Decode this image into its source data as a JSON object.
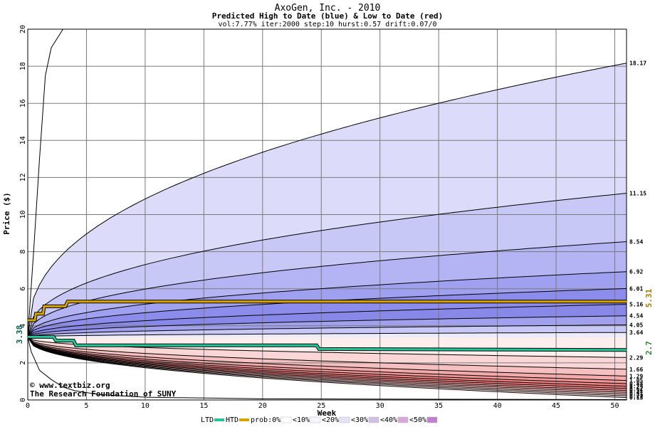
{
  "colors": {
    "bg": "#ffffff",
    "grid": "#7a7a7a",
    "htd": "#d9a400",
    "ltd": "#22c89a",
    "start_label": "#006644",
    "last_htd_label": "#b07c00",
    "last_ltd_label": "#2a8a2a",
    "footer": "#000080"
  },
  "chart_data": {
    "type": "area",
    "title": "AxoGen, Inc. - 2010",
    "subtitle": "Predicted High to Date (blue) &  Low to Date (red)",
    "params": "vol:7.77% iter:2000 step:10 hurst:0.57 drift:0.07/0",
    "xlabel": "Week",
    "ylabel": "Price ($)",
    "xlim": [
      0,
      51
    ],
    "ylim": [
      0,
      20
    ],
    "x_ticks": [
      0,
      5,
      10,
      15,
      20,
      25,
      30,
      35,
      40,
      45,
      50
    ],
    "y_ticks": [
      0,
      2,
      4,
      6,
      8,
      10,
      12,
      14,
      16,
      18,
      20
    ],
    "grid": true,
    "start_price": "3.38",
    "last_htd": "5.31",
    "last_ltd": "2.7",
    "htd_line": [
      [
        0,
        4.3
      ],
      [
        0.6,
        4.3
      ],
      [
        0.7,
        4.65
      ],
      [
        1.3,
        4.65
      ],
      [
        1.4,
        5.05
      ],
      [
        3.2,
        5.05
      ],
      [
        3.4,
        5.31
      ],
      [
        51,
        5.31
      ]
    ],
    "ltd_line": [
      [
        0,
        3.4
      ],
      [
        2.2,
        3.4
      ],
      [
        2.4,
        3.2
      ],
      [
        3.9,
        3.2
      ],
      [
        4.1,
        2.95
      ],
      [
        24.6,
        2.95
      ],
      [
        24.8,
        2.75
      ],
      [
        51,
        2.7
      ]
    ],
    "upper_bands": [
      {
        "end_label": "18.17",
        "end": 18.17,
        "fill": "#dcdcfa"
      },
      {
        "end_label": "11.15",
        "end": 11.15,
        "fill": "#c8c8f7"
      },
      {
        "end_label": "8.54",
        "end": 8.54,
        "fill": "#b4b4f4"
      },
      {
        "end_label": "6.92",
        "end": 6.92,
        "fill": "#a0a0f0"
      },
      {
        "end_label": "6.01",
        "end": 6.01,
        "fill": "#8c8cec"
      },
      {
        "end_label": "5.16",
        "end": 5.16,
        "fill": "#8888e8"
      },
      {
        "end_label": "4.54",
        "end": 4.54,
        "fill": "#a0a0ee"
      },
      {
        "end_label": "4.05",
        "end": 4.05,
        "fill": "#c8c8f6"
      },
      {
        "end_label": "3.64",
        "end": 3.64,
        "fill": "#ececfc"
      }
    ],
    "lower_bands": [
      {
        "end_label": "2.29",
        "end": 2.29,
        "fill": "#fdeeee"
      },
      {
        "end_label": "1.66",
        "end": 1.66,
        "fill": "#fad6d6"
      },
      {
        "end_label": "1.29",
        "end": 1.29,
        "fill": "#f7c0c0"
      },
      {
        "end_label": "1.05",
        "end": 1.05,
        "fill": "#f4aaaa"
      },
      {
        "end_label": "0.88",
        "end": 0.88,
        "fill": "#f29696"
      },
      {
        "end_label": "0.74",
        "end": 0.74,
        "fill": "#f08484"
      },
      {
        "end_label": "0.62",
        "end": 0.62,
        "fill": "#f07878"
      },
      {
        "end_label": "0.51",
        "end": 0.51,
        "fill": "#f28c8c"
      },
      {
        "end_label": "0.41",
        "end": 0.41,
        "fill": "#f5a6a6"
      },
      {
        "end_label": "0.31",
        "end": 0.31,
        "fill": "#f8c0c0"
      },
      {
        "end_label": "0.22",
        "end": 0.22,
        "fill": "#fbd8d8"
      },
      {
        "end_label": "0.13",
        "end": 0.13,
        "fill": "#fdeaea"
      }
    ],
    "outer_upper_line": [
      [
        0,
        3.38
      ],
      [
        0.5,
        8
      ],
      [
        1,
        13
      ],
      [
        1.5,
        17.5
      ],
      [
        2,
        19
      ],
      [
        3,
        20
      ]
    ],
    "outer_lower_line": [
      [
        0,
        3.38
      ],
      [
        0.3,
        2.6
      ],
      [
        1,
        1.6
      ],
      [
        2,
        1.1
      ],
      [
        3,
        0.7
      ],
      [
        4,
        0.5
      ],
      [
        6,
        0.3
      ],
      [
        10,
        0.15
      ],
      [
        20,
        0.06
      ],
      [
        51,
        0.02
      ]
    ],
    "legend": [
      "LTD",
      "HTD",
      "prob:0%",
      "<10%",
      "<20%",
      "<30%",
      "<40%",
      "<50%"
    ],
    "legend_swatches": [
      "#22c89a",
      "#d9a400",
      "#ffffff",
      "#f6f6fe",
      "#e2e2fa",
      "#d0c0e8",
      "#d8a8d8",
      "#c080d0"
    ]
  },
  "footer": {
    "line1": "© www.textbiz.org",
    "line2": "The Research Foundation of SUNY"
  }
}
